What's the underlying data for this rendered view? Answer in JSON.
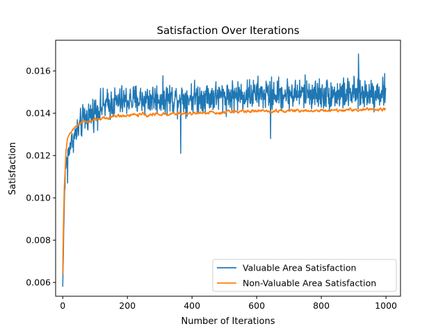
{
  "chart_data": {
    "type": "line",
    "title": "Satisfaction Over Iterations",
    "xlabel": "Number of Iterations",
    "ylabel": "Satisfaction",
    "xlim": [
      -22,
      1045
    ],
    "ylim": [
      0.00535,
      0.01745
    ],
    "xticks": [
      0,
      200,
      400,
      600,
      800,
      1000
    ],
    "yticks": [
      0.006,
      0.008,
      0.01,
      0.012,
      0.014,
      0.016
    ],
    "ytick_labels": [
      "0.006",
      "0.008",
      "0.010",
      "0.012",
      "0.014",
      "0.016"
    ],
    "grid": false,
    "legend_position": "lower-right",
    "series": [
      {
        "name": "Valuable Area Satisfaction",
        "color": "#1f77b4",
        "trend_x": [
          0,
          2,
          5,
          10,
          15,
          20,
          30,
          40,
          50,
          60,
          80,
          100,
          120,
          140,
          160,
          200,
          250,
          300,
          350,
          400,
          450,
          500,
          550,
          600,
          650,
          700,
          750,
          800,
          850,
          900,
          950,
          1000
        ],
        "trend_y": [
          0.0058,
          0.0075,
          0.0098,
          0.0116,
          0.0121,
          0.0124,
          0.0127,
          0.013,
          0.0133,
          0.0136,
          0.0139,
          0.0141,
          0.0143,
          0.0144,
          0.0145,
          0.0146,
          0.01465,
          0.0147,
          0.0147,
          0.01475,
          0.0148,
          0.0148,
          0.01485,
          0.0149,
          0.0149,
          0.0149,
          0.01495,
          0.0149,
          0.0149,
          0.0149,
          0.01495,
          0.015
        ],
        "noise_amplitude": 0.00055,
        "extreme_points": [
          {
            "x": 0,
            "y": 0.0058
          },
          {
            "x": 8,
            "y": 0.0115
          },
          {
            "x": 15,
            "y": 0.0107
          },
          {
            "x": 365,
            "y": 0.0121
          },
          {
            "x": 643,
            "y": 0.0128
          },
          {
            "x": 915,
            "y": 0.0168
          },
          {
            "x": 1000,
            "y": 0.0152
          }
        ]
      },
      {
        "name": "Non-Valuable Area Satisfaction",
        "color": "#ff7f0e",
        "trend_x": [
          0,
          2,
          5,
          10,
          15,
          20,
          30,
          40,
          50,
          60,
          80,
          100,
          120,
          140,
          160,
          200,
          250,
          300,
          350,
          400,
          450,
          500,
          550,
          600,
          650,
          700,
          750,
          800,
          850,
          900,
          950,
          1000
        ],
        "trend_y": [
          0.0064,
          0.0085,
          0.0105,
          0.0122,
          0.0128,
          0.013,
          0.0132,
          0.0134,
          0.0135,
          0.01355,
          0.0136,
          0.0137,
          0.01375,
          0.0138,
          0.01385,
          0.0139,
          0.01393,
          0.01395,
          0.01397,
          0.014,
          0.01403,
          0.01405,
          0.0141,
          0.0141,
          0.01412,
          0.01412,
          0.01413,
          0.01413,
          0.01415,
          0.01415,
          0.01417,
          0.0142
        ],
        "noise_amplitude": 0.00013,
        "extreme_points": [
          {
            "x": 0,
            "y": 0.0064
          },
          {
            "x": 1000,
            "y": 0.0142
          }
        ]
      }
    ]
  }
}
